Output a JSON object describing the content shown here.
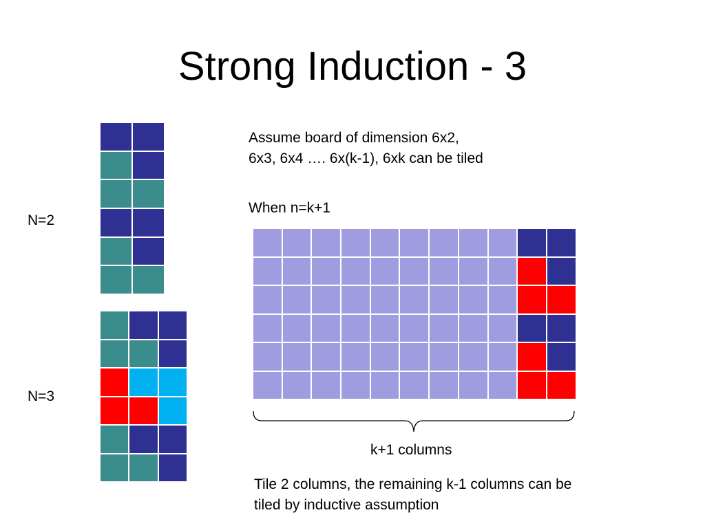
{
  "slide": {
    "title": "Strong Induction - 3",
    "label_n2": "N=2",
    "label_n3": "N=3",
    "assumption_line1": "Assume board of dimension 6x2,",
    "assumption_line2": "6x3, 6x4 …. 6x(k-1), 6xk can be tiled",
    "when_label": "When n=k+1",
    "columns_label": "k+1 columns",
    "conclusion_line1": "Tile 2 columns, the remaining k-1 columns can be",
    "conclusion_line2": "tiled by inductive assumption"
  },
  "colors": {
    "N": "#2e3192",
    "T": "#3b8c8c",
    "R": "#ff0000",
    "C": "#00b0f0",
    "L": "#a09ce0"
  },
  "boards": {
    "n2": {
      "rows": [
        "NN",
        "TN",
        "TT",
        "NN",
        "TN",
        "TT"
      ]
    },
    "n3": {
      "rows": [
        "TNN",
        "TTN",
        "RCC",
        "RRC",
        "TNN",
        "TTN"
      ]
    },
    "nk1": {
      "rows": [
        "LLLLLLLLLNN",
        "LLLLLLLLLRN",
        "LLLLLLLLLRR",
        "LLLLLLLLLNN",
        "LLLLLLLLLRN",
        "LLLLLLLLLRR"
      ]
    }
  }
}
